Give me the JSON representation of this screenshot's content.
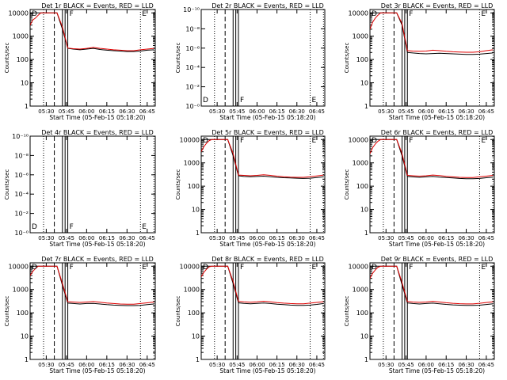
{
  "figure": {
    "xlabel": "Start Time (05-Feb-15 05:18:20)",
    "ylabel": "Counts/sec",
    "x_tick_labels": [
      "05:30",
      "05:45",
      "06:00",
      "06:15",
      "06:30",
      "06:45"
    ],
    "colors": {
      "events": "#000000",
      "lld": "#e00000"
    }
  },
  "chart_data": [
    {
      "type": "line",
      "title": "Det 1r  BLACK = Events, RED = LLD",
      "scale": "log",
      "y_tick_labels": [
        "1",
        "10",
        "100",
        "1000",
        "10000"
      ],
      "series": [
        {
          "x": [
            "05:18",
            "05:22",
            "05:26",
            "05:30",
            "05:34",
            "05:38",
            "05:42",
            "05:46",
            "05:50",
            "05:55",
            "06:00",
            "06:05",
            "06:10",
            "06:15",
            "06:20",
            "06:25",
            "06:30",
            "06:35",
            "06:40",
            "06:45",
            "06:50"
          ],
          "values": [
            10000,
            10000,
            10000,
            10000,
            10000,
            10000,
            2000,
            300,
            280,
            260,
            280,
            300,
            270,
            250,
            240,
            230,
            220,
            220,
            230,
            250,
            260
          ]
        },
        {
          "x": [
            "05:18",
            "05:20",
            "05:22",
            "05:24",
            "05:26",
            "05:30",
            "05:34",
            "05:38",
            "05:42",
            "05:46",
            "05:50",
            "05:55",
            "06:00",
            "06:05",
            "06:10",
            "06:15",
            "06:20",
            "06:25",
            "06:30",
            "06:35",
            "06:40",
            "06:45",
            "06:50"
          ],
          "values": [
            3000,
            5000,
            6000,
            8000,
            10000,
            10000,
            10000,
            10000,
            2500,
            310,
            290,
            280,
            300,
            330,
            300,
            280,
            260,
            250,
            240,
            240,
            260,
            280,
            300
          ]
        }
      ],
      "markers": [
        {
          "x": "05:18",
          "label": "D"
        },
        {
          "x": "05:46",
          "label": "F"
        },
        {
          "x": "06:40",
          "label": "E"
        }
      ]
    },
    {
      "type": "line",
      "title": "Det 2r  BLACK = Events, RED = LLD",
      "scale": "linear",
      "y_tick_labels": [
        "10⁻⁰",
        "10⁻²",
        "10⁻⁴",
        "10⁻⁶",
        "10⁻⁸",
        "10⁻¹⁰"
      ],
      "series": [],
      "markers": [
        {
          "x": "05:18",
          "label": "D"
        },
        {
          "x": "05:46",
          "label": "F"
        },
        {
          "x": "06:40",
          "label": "E"
        }
      ]
    },
    {
      "type": "line",
      "title": "Det 3r  BLACK = Events, RED = LLD",
      "scale": "log",
      "y_tick_labels": [
        "1",
        "10",
        "100",
        "1000",
        "10000"
      ],
      "series": [
        {
          "x": [
            "05:18",
            "05:22",
            "05:26",
            "05:30",
            "05:34",
            "05:38",
            "05:42",
            "05:46",
            "05:50",
            "05:55",
            "06:00",
            "06:05",
            "06:10",
            "06:15",
            "06:20",
            "06:25",
            "06:30",
            "06:35",
            "06:40",
            "06:45",
            "06:50"
          ],
          "values": [
            10000,
            10000,
            10000,
            10000,
            10000,
            10000,
            3000,
            200,
            190,
            180,
            175,
            180,
            185,
            180,
            175,
            170,
            165,
            165,
            170,
            180,
            190
          ]
        },
        {
          "x": [
            "05:18",
            "05:20",
            "05:22",
            "05:24",
            "05:26",
            "05:30",
            "05:34",
            "05:38",
            "05:42",
            "05:46",
            "05:50",
            "05:55",
            "06:00",
            "06:05",
            "06:10",
            "06:15",
            "06:20",
            "06:25",
            "06:30",
            "06:35",
            "06:40",
            "06:45",
            "06:50"
          ],
          "values": [
            2000,
            4000,
            6000,
            8000,
            10000,
            10000,
            10000,
            10000,
            3500,
            240,
            230,
            225,
            230,
            250,
            240,
            225,
            215,
            210,
            205,
            205,
            215,
            240,
            260
          ]
        }
      ],
      "markers": [
        {
          "x": "05:18",
          "label": "D"
        },
        {
          "x": "05:46",
          "label": "F"
        },
        {
          "x": "06:40",
          "label": "E"
        }
      ]
    },
    {
      "type": "line",
      "title": "Det 4r  BLACK = Events, RED = LLD",
      "scale": "linear",
      "y_tick_labels": [
        "10⁻⁰",
        "10⁻²",
        "10⁻⁴",
        "10⁻⁶",
        "10⁻⁸",
        "10⁻¹⁰"
      ],
      "series": [],
      "markers": [
        {
          "x": "05:18",
          "label": "D"
        },
        {
          "x": "05:46",
          "label": "F"
        },
        {
          "x": "06:40",
          "label": "E"
        }
      ]
    },
    {
      "type": "line",
      "title": "Det 5r  BLACK = Events, RED = LLD",
      "scale": "log",
      "y_tick_labels": [
        "1",
        "10",
        "100",
        "1000",
        "10000"
      ],
      "series": [
        {
          "x": [
            "05:18",
            "05:22",
            "05:26",
            "05:30",
            "05:34",
            "05:38",
            "05:42",
            "05:46",
            "05:50",
            "05:55",
            "06:00",
            "06:05",
            "06:10",
            "06:15",
            "06:20",
            "06:25",
            "06:30",
            "06:35",
            "06:40",
            "06:45",
            "06:50"
          ],
          "values": [
            10000,
            10000,
            10000,
            10000,
            10000,
            10000,
            2000,
            280,
            260,
            255,
            260,
            270,
            255,
            240,
            230,
            225,
            220,
            215,
            220,
            235,
            250
          ]
        },
        {
          "x": [
            "05:18",
            "05:20",
            "05:22",
            "05:24",
            "05:26",
            "05:30",
            "05:34",
            "05:38",
            "05:42",
            "05:46",
            "05:50",
            "05:55",
            "06:00",
            "06:05",
            "06:10",
            "06:15",
            "06:20",
            "06:25",
            "06:30",
            "06:35",
            "06:40",
            "06:45",
            "06:50"
          ],
          "values": [
            3000,
            5000,
            7000,
            9000,
            10000,
            10000,
            10000,
            10000,
            2500,
            300,
            290,
            280,
            290,
            310,
            290,
            270,
            255,
            245,
            240,
            240,
            255,
            275,
            300
          ]
        }
      ],
      "markers": [
        {
          "x": "05:18",
          "label": "D"
        },
        {
          "x": "05:46",
          "label": "F"
        },
        {
          "x": "06:40",
          "label": "E"
        }
      ]
    },
    {
      "type": "line",
      "title": "Det 6r  BLACK = Events, RED = LLD",
      "scale": "log",
      "y_tick_labels": [
        "1",
        "10",
        "100",
        "1000",
        "10000"
      ],
      "series": [
        {
          "x": [
            "05:18",
            "05:22",
            "05:26",
            "05:30",
            "05:34",
            "05:38",
            "05:42",
            "05:46",
            "05:50",
            "05:55",
            "06:00",
            "06:05",
            "06:10",
            "06:15",
            "06:20",
            "06:25",
            "06:30",
            "06:35",
            "06:40",
            "06:45",
            "06:50"
          ],
          "values": [
            10000,
            10000,
            10000,
            10000,
            10000,
            10000,
            2000,
            260,
            250,
            240,
            250,
            260,
            245,
            235,
            225,
            215,
            210,
            210,
            215,
            230,
            245
          ]
        },
        {
          "x": [
            "05:18",
            "05:20",
            "05:22",
            "05:24",
            "05:26",
            "05:30",
            "05:34",
            "05:38",
            "05:42",
            "05:46",
            "05:50",
            "05:55",
            "06:00",
            "06:05",
            "06:10",
            "06:15",
            "06:20",
            "06:25",
            "06:30",
            "06:35",
            "06:40",
            "06:45",
            "06:50"
          ],
          "values": [
            2500,
            4500,
            6500,
            8500,
            10000,
            10000,
            10000,
            10000,
            2500,
            290,
            280,
            270,
            280,
            300,
            285,
            265,
            250,
            240,
            235,
            235,
            250,
            270,
            290
          ]
        }
      ],
      "markers": [
        {
          "x": "05:18",
          "label": "D"
        },
        {
          "x": "05:46",
          "label": "F"
        },
        {
          "x": "06:40",
          "label": "E"
        }
      ]
    },
    {
      "type": "line",
      "title": "Det 7r  BLACK = Events, RED = LLD",
      "scale": "log",
      "y_tick_labels": [
        "1",
        "10",
        "100",
        "1000",
        "10000"
      ],
      "series": [
        {
          "x": [
            "05:18",
            "05:22",
            "05:26",
            "05:30",
            "05:34",
            "05:38",
            "05:42",
            "05:46",
            "05:50",
            "05:55",
            "06:00",
            "06:05",
            "06:10",
            "06:15",
            "06:20",
            "06:25",
            "06:30",
            "06:35",
            "06:40",
            "06:45",
            "06:50"
          ],
          "values": [
            10000,
            10000,
            10000,
            10000,
            10000,
            10000,
            1500,
            260,
            250,
            240,
            250,
            255,
            240,
            225,
            215,
            210,
            205,
            205,
            210,
            225,
            240
          ]
        },
        {
          "x": [
            "05:18",
            "05:20",
            "05:22",
            "05:24",
            "05:26",
            "05:30",
            "05:34",
            "05:38",
            "05:42",
            "05:46",
            "05:50",
            "05:55",
            "06:00",
            "06:05",
            "06:10",
            "06:15",
            "06:20",
            "06:25",
            "06:30",
            "06:35",
            "06:40",
            "06:45",
            "06:50"
          ],
          "values": [
            4000,
            6000,
            8000,
            10000,
            10000,
            10000,
            10000,
            10000,
            1800,
            300,
            290,
            280,
            290,
            305,
            285,
            265,
            250,
            240,
            235,
            235,
            250,
            270,
            290
          ]
        }
      ],
      "markers": [
        {
          "x": "05:18",
          "label": "D"
        },
        {
          "x": "05:46",
          "label": "F"
        },
        {
          "x": "06:40",
          "label": "E"
        }
      ]
    },
    {
      "type": "line",
      "title": "Det 8r  BLACK = Events, RED = LLD",
      "scale": "log",
      "y_tick_labels": [
        "1",
        "10",
        "100",
        "1000",
        "10000"
      ],
      "series": [
        {
          "x": [
            "05:18",
            "05:22",
            "05:26",
            "05:30",
            "05:34",
            "05:38",
            "05:42",
            "05:46",
            "05:50",
            "05:55",
            "06:00",
            "06:05",
            "06:10",
            "06:15",
            "06:20",
            "06:25",
            "06:30",
            "06:35",
            "06:40",
            "06:45",
            "06:50"
          ],
          "values": [
            10000,
            10000,
            10000,
            10000,
            10000,
            10000,
            1800,
            270,
            255,
            245,
            255,
            265,
            250,
            235,
            225,
            215,
            210,
            210,
            215,
            230,
            250
          ]
        },
        {
          "x": [
            "05:18",
            "05:20",
            "05:22",
            "05:24",
            "05:26",
            "05:30",
            "05:34",
            "05:38",
            "05:42",
            "05:46",
            "05:50",
            "05:55",
            "06:00",
            "06:05",
            "06:10",
            "06:15",
            "06:20",
            "06:25",
            "06:30",
            "06:35",
            "06:40",
            "06:45",
            "06:50"
          ],
          "values": [
            3500,
            5500,
            7500,
            9500,
            10000,
            10000,
            10000,
            10000,
            2200,
            310,
            295,
            285,
            295,
            315,
            295,
            275,
            260,
            250,
            245,
            245,
            260,
            280,
            300
          ]
        }
      ],
      "markers": [
        {
          "x": "05:18",
          "label": "D"
        },
        {
          "x": "05:46",
          "label": "F"
        },
        {
          "x": "06:40",
          "label": "E"
        }
      ]
    },
    {
      "type": "line",
      "title": "Det 9r  BLACK = Events, RED = LLD",
      "scale": "log",
      "y_tick_labels": [
        "1",
        "10",
        "100",
        "1000",
        "10000"
      ],
      "series": [
        {
          "x": [
            "05:18",
            "05:22",
            "05:26",
            "05:30",
            "05:34",
            "05:38",
            "05:42",
            "05:46",
            "05:50",
            "05:55",
            "06:00",
            "06:05",
            "06:10",
            "06:15",
            "06:20",
            "06:25",
            "06:30",
            "06:35",
            "06:40",
            "06:45",
            "06:50"
          ],
          "values": [
            10000,
            10000,
            10000,
            10000,
            10000,
            10000,
            1600,
            265,
            250,
            240,
            250,
            260,
            245,
            230,
            220,
            212,
            208,
            208,
            212,
            228,
            245
          ]
        },
        {
          "x": [
            "05:18",
            "05:20",
            "05:22",
            "05:24",
            "05:26",
            "05:30",
            "05:34",
            "05:38",
            "05:42",
            "05:46",
            "05:50",
            "05:55",
            "06:00",
            "06:05",
            "06:10",
            "06:15",
            "06:20",
            "06:25",
            "06:30",
            "06:35",
            "06:40",
            "06:45",
            "06:50"
          ],
          "values": [
            3000,
            5000,
            7000,
            9000,
            10000,
            10000,
            10000,
            10000,
            2000,
            305,
            292,
            282,
            292,
            312,
            292,
            272,
            257,
            247,
            242,
            242,
            257,
            277,
            297
          ]
        }
      ],
      "markers": [
        {
          "x": "05:18",
          "label": "D"
        },
        {
          "x": "05:46",
          "label": "F"
        },
        {
          "x": "06:40",
          "label": "E"
        }
      ]
    }
  ]
}
